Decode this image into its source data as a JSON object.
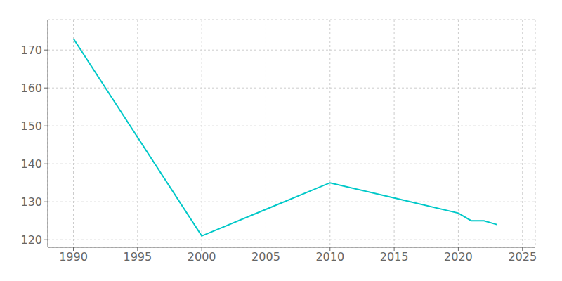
{
  "chart_data": {
    "type": "line",
    "x": [
      1990,
      2000,
      2005,
      2010,
      2015,
      2020,
      2021,
      2022,
      2023
    ],
    "values": [
      173,
      121,
      128,
      135,
      131,
      127,
      125,
      125,
      124
    ],
    "color": "#00c8c8",
    "xlim": [
      1988,
      2026
    ],
    "xticks": [
      1990,
      1995,
      2000,
      2005,
      2010,
      2015,
      2020,
      2025
    ],
    "ylim": [
      118,
      178
    ],
    "yticks": [
      120,
      130,
      140,
      150,
      160,
      170
    ],
    "grid": true
  }
}
